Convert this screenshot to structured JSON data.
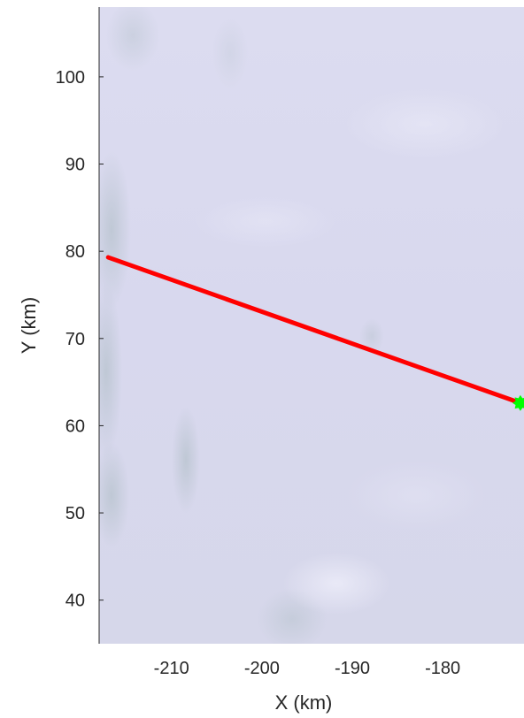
{
  "chart_data": {
    "type": "map",
    "xlabel": "X (km)",
    "ylabel": "Y (km)",
    "xlim": [
      -218,
      -171
    ],
    "ylim": [
      35,
      108
    ],
    "xticks": [
      -210,
      -200,
      -190,
      -180
    ],
    "yticks": [
      40,
      50,
      60,
      70,
      80,
      90,
      100
    ],
    "xtick_labels": [
      "-210",
      "-200",
      "-190",
      "-180"
    ],
    "ytick_labels": [
      "40",
      "50",
      "60",
      "70",
      "80",
      "90",
      "100"
    ],
    "background": "satellite imagery of ice sheet surface",
    "series": [
      {
        "type": "line",
        "color": "#ff0000",
        "points": [
          [
            -217.0,
            79.3
          ],
          [
            -171.4,
            62.6
          ]
        ]
      },
      {
        "type": "marker",
        "marker": "star",
        "color": "#00ff00",
        "point": [
          -171.4,
          62.6
        ]
      }
    ]
  }
}
